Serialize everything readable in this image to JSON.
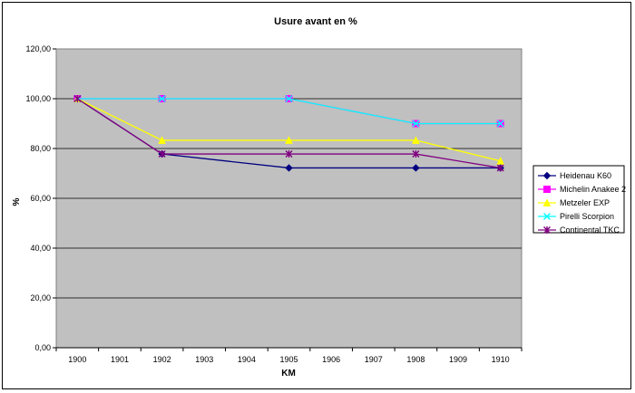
{
  "chart_data": {
    "type": "line",
    "title": "Usure avant en %",
    "xlabel": "KM",
    "ylabel": "%",
    "categories": [
      "1900",
      "1901",
      "1902",
      "1903",
      "1904",
      "1905",
      "1906",
      "1907",
      "1908",
      "1909",
      "1910"
    ],
    "y_ticks": [
      "0,00",
      "20,00",
      "40,00",
      "60,00",
      "80,00",
      "100,00",
      "120,00"
    ],
    "ylim": [
      0,
      120
    ],
    "grid": "horizontal",
    "legend_position": "right",
    "plot_background": "#c0c0c0",
    "series": [
      {
        "name": "Heidenau K60",
        "color": "#000080",
        "marker": "diamond",
        "values": [
          100,
          null,
          77.8,
          null,
          null,
          72.2,
          null,
          null,
          72.2,
          null,
          72.2
        ]
      },
      {
        "name": "Michelin Anakee 2",
        "color": "#ff00ff",
        "marker": "square",
        "values": [
          100,
          null,
          100,
          null,
          null,
          100,
          null,
          null,
          90,
          null,
          90
        ]
      },
      {
        "name": "Metzeler EXP",
        "color": "#ffff00",
        "marker": "triangle",
        "values": [
          100,
          null,
          83.3,
          null,
          null,
          83.3,
          null,
          null,
          83.3,
          null,
          75
        ]
      },
      {
        "name": "Pirelli Scorpion",
        "color": "#00ffff",
        "marker": "x",
        "values": [
          100,
          null,
          100,
          null,
          null,
          100,
          null,
          null,
          90,
          null,
          90
        ]
      },
      {
        "name": "Continental TKC",
        "color": "#800080",
        "marker": "star",
        "values": [
          100,
          null,
          77.8,
          null,
          null,
          77.8,
          null,
          null,
          77.8,
          null,
          72.2
        ]
      }
    ]
  }
}
